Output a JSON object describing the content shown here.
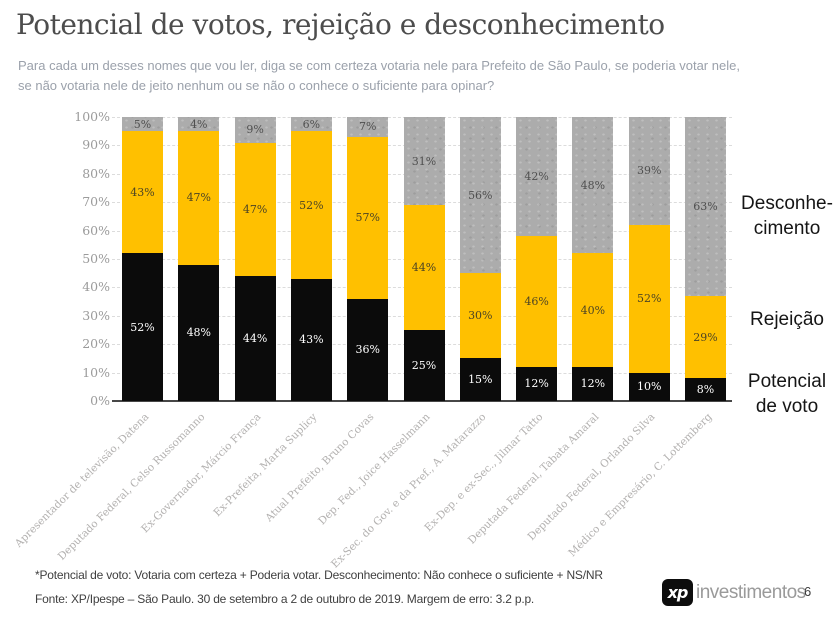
{
  "header": {
    "title": "Potencial de votos, rejeição e desconhecimento",
    "subtitle_line1": "Para cada um desses nomes que vou ler, diga se com certeza votaria nele para Prefeito de São Paulo, se poderia votar nele,",
    "subtitle_line2": "se não votaria nele de jeito nenhum ou se não o conhece o suficiente para opinar?"
  },
  "chart_data": {
    "type": "bar",
    "stacked": true,
    "title": "Potencial de votos, rejeição e desconhecimento",
    "ylim": [
      0,
      100
    ],
    "grid": "horizontal-dashed",
    "legend_position": "right",
    "yticks": [
      "100%",
      "90%",
      "80%",
      "70%",
      "60%",
      "50%",
      "40%",
      "30%",
      "20%",
      "10%",
      "0%"
    ],
    "categories": [
      "Apresentador de televisão, Datena",
      "Deputado Federal, Celso Russomanno",
      "Ex-Governador, Márcio França",
      "Ex-Prefeita, Marta Suplicy",
      "Atual Prefeito, Bruno Covas",
      "Dep. Fed., Joice Hasselmann",
      "Ex-Sec. do Gov. e da Pref., A. Matarazzo",
      "Ex-Dep. e ex-Sec., Jilmar Tatto",
      "Deputada Federal, Tabata Amaral",
      "Deputado Federal, Orlando Silva",
      "Médico e Empresário, C. Lottemberg"
    ],
    "series": [
      {
        "name": "Potencial de voto",
        "color": "#0b0b0b",
        "values": [
          52,
          48,
          44,
          43,
          36,
          25,
          15,
          12,
          12,
          10,
          8
        ]
      },
      {
        "name": "Rejeição",
        "color": "#ffc000",
        "values": [
          43,
          47,
          47,
          52,
          57,
          44,
          30,
          46,
          40,
          52,
          29
        ]
      },
      {
        "name": "Desconhecimento",
        "color": "#acacac",
        "values": [
          5,
          4,
          9,
          6,
          7,
          31,
          56,
          42,
          48,
          39,
          63
        ]
      }
    ]
  },
  "legend": {
    "desconhecimento": "Desconhe-\ncimento",
    "rejeicao": "Rejeição",
    "potencial": "Potencial\nde voto"
  },
  "footer": {
    "note": "*Potencial de voto: Votaria com certeza + Poderia votar. Desconhecimento: Não conhece o suficiente + NS/NR",
    "source": "Fonte: XP/Ipespe – São Paulo. 30 de setembro a 2 de outubro de 2019. Margem de erro: 3.2 p.p.",
    "logo_xp": "xp",
    "logo_name": "investimentos",
    "page_number": "6"
  },
  "colors": {
    "potencial": "#0b0b0b",
    "rejeicao": "#ffc000",
    "desconhecimento": "#acacac",
    "grid": "#dcdcdc",
    "axis": "#474747"
  }
}
